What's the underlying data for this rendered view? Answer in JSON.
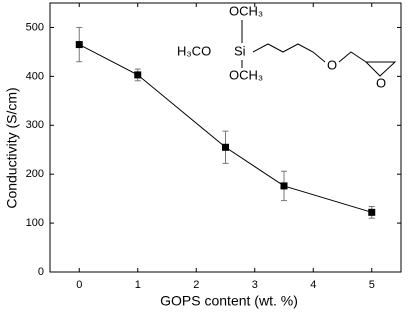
{
  "chart_data": {
    "type": "line",
    "x_label": "GOPS content (wt. %)",
    "y_label": "Conductivity (S/cm)",
    "x": [
      0,
      1,
      2.5,
      3.5,
      5
    ],
    "values": [
      465,
      403,
      255,
      176,
      122
    ],
    "errors": [
      35,
      12,
      33,
      30,
      12
    ],
    "color": "#000000",
    "xlim": [
      -0.5,
      5.5
    ],
    "xticks": [
      0,
      1,
      2,
      3,
      4,
      5
    ],
    "ylim": [
      0,
      550
    ],
    "yticks": [
      0,
      100,
      200,
      300,
      400,
      500
    ],
    "grid": false,
    "inset": {
      "top_group": "OCH₃",
      "left_group": "H₃CO",
      "center_atom": "Si",
      "bottom_group": "OCH₃",
      "chain_oxygen": "O",
      "epoxide_oxygen": "O"
    }
  }
}
